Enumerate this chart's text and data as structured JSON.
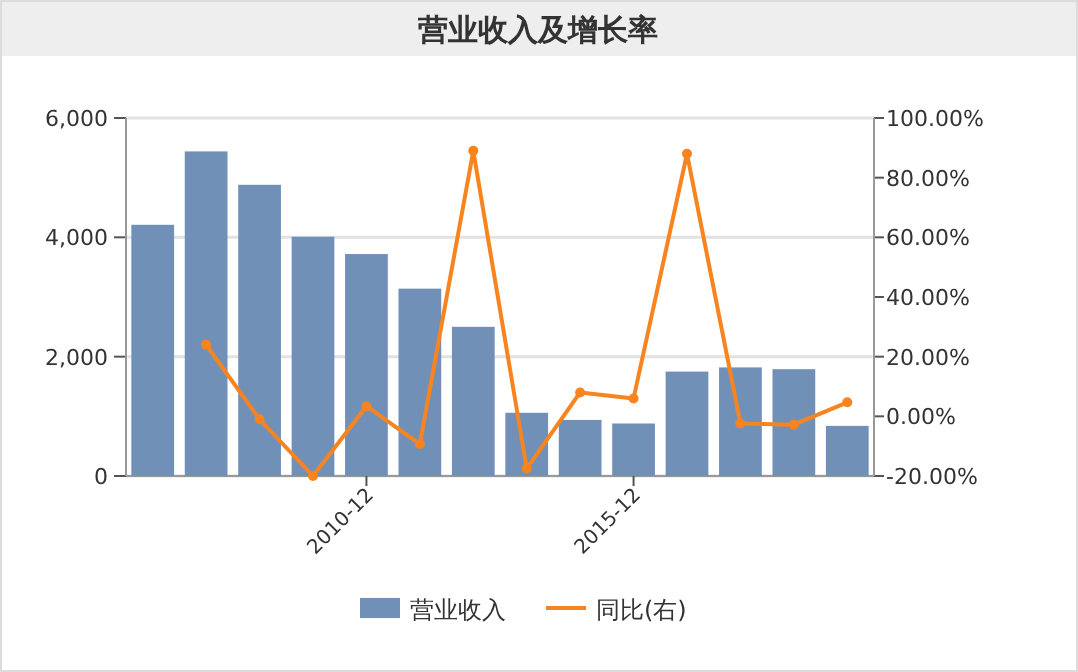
{
  "chart_data": {
    "type": "bar",
    "title": "营业收入及增长率",
    "categories": [
      null,
      null,
      null,
      null,
      "2010-12",
      null,
      null,
      null,
      null,
      "2015-12",
      null,
      null,
      null,
      null
    ],
    "series": [
      {
        "name": "营业收入",
        "color": "#7190b8",
        "values": [
          4210,
          5440,
          4880,
          4010,
          3720,
          3140,
          2500,
          1060,
          940,
          880,
          1750,
          1820,
          1790,
          840
        ]
      },
      {
        "name": "同比(右)",
        "type": "line",
        "axis": "y2",
        "color": "#f7841f",
        "marker": "circle",
        "values": [
          null,
          24,
          -1,
          -20,
          3.4,
          -9.3,
          89,
          -17.5,
          8,
          6,
          88,
          -2.4,
          -2.8,
          4.7
        ]
      }
    ],
    "ylim": [
      0,
      6000
    ],
    "yticks": [
      {
        "value": 0,
        "label": "0"
      },
      {
        "value": 2000,
        "label": "2,000"
      },
      {
        "value": 4000,
        "label": "4,000"
      },
      {
        "value": 6000,
        "label": "6,000"
      }
    ],
    "y2lim": [
      -20,
      100
    ],
    "y2ticks": [
      {
        "value": -20,
        "label": "-20.00%"
      },
      {
        "value": 0,
        "label": "0.00%"
      },
      {
        "value": 20,
        "label": "20.00%"
      },
      {
        "value": 40,
        "label": "40.00%"
      },
      {
        "value": 60,
        "label": "60.00%"
      },
      {
        "value": 80,
        "label": "80.00%"
      },
      {
        "value": 100,
        "label": "100.00%"
      }
    ],
    "grid": "y",
    "legend": "bottom"
  }
}
